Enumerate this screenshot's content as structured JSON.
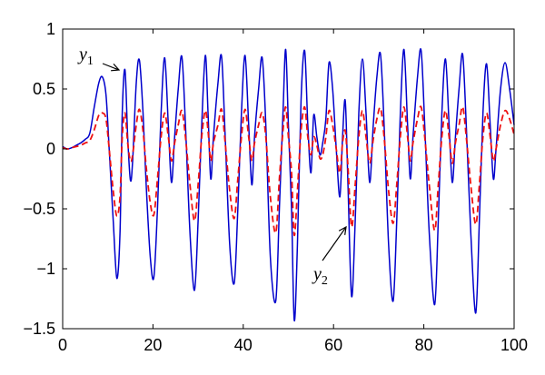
{
  "chart_data": {
    "type": "line",
    "title": "",
    "xlabel": "",
    "ylabel": "",
    "xlim": [
      0,
      100
    ],
    "ylim": [
      -1.5,
      1
    ],
    "x_ticks": [
      0,
      20,
      40,
      60,
      80,
      100
    ],
    "y_ticks": [
      1,
      0.5,
      0,
      -0.5,
      -1,
      -1.5
    ],
    "x_tick_labels": [
      "0",
      "20",
      "40",
      "60",
      "80",
      "100"
    ],
    "y_tick_labels": [
      "1",
      "0.5",
      "0",
      "−0.5",
      "−1",
      "−1.5"
    ],
    "grid": false,
    "legend": "none",
    "series": [
      {
        "color": "#0000cc",
        "style": "solid",
        "points": [
          [
            0,
            0.02
          ],
          [
            1,
            0.0
          ],
          [
            2,
            0.01
          ],
          [
            3,
            0.03
          ],
          [
            4,
            0.05
          ],
          [
            5,
            0.08
          ],
          [
            6,
            0.13
          ],
          [
            7,
            0.35
          ],
          [
            8,
            0.55
          ],
          [
            8.8,
            0.6
          ],
          [
            9.6,
            0.45
          ],
          [
            10.3,
            0.0
          ],
          [
            11.2,
            -0.6
          ],
          [
            12,
            -1.08
          ],
          [
            12.7,
            -0.7
          ],
          [
            13.2,
            0.3
          ],
          [
            13.8,
            0.66
          ],
          [
            14.4,
            0.1
          ],
          [
            15,
            -0.26
          ],
          [
            15.5,
            -0.1
          ],
          [
            16.3,
            0.55
          ],
          [
            17,
            0.74
          ],
          [
            17.8,
            0.3
          ],
          [
            18.5,
            -0.3
          ],
          [
            19.4,
            -0.9
          ],
          [
            20.2,
            -1.07
          ],
          [
            21,
            -0.5
          ],
          [
            21.8,
            0.3
          ],
          [
            22.6,
            0.76
          ],
          [
            23.4,
            0.2
          ],
          [
            24.1,
            -0.28
          ],
          [
            24.8,
            0.1
          ],
          [
            25.6,
            0.5
          ],
          [
            26.4,
            0.77
          ],
          [
            27.2,
            0.2
          ],
          [
            28.2,
            -0.7
          ],
          [
            29.2,
            -1.18
          ],
          [
            30,
            -0.6
          ],
          [
            30.8,
            0.2
          ],
          [
            31.6,
            0.78
          ],
          [
            32.2,
            0.3
          ],
          [
            32.8,
            -0.25
          ],
          [
            33.4,
            0.1
          ],
          [
            34.4,
            0.55
          ],
          [
            35.2,
            0.77
          ],
          [
            36,
            0.1
          ],
          [
            37,
            -0.8
          ],
          [
            38,
            -1.12
          ],
          [
            38.8,
            -0.5
          ],
          [
            39.6,
            0.3
          ],
          [
            40.4,
            0.78
          ],
          [
            41.2,
            0.2
          ],
          [
            41.9,
            -0.3
          ],
          [
            42.5,
            0.1
          ],
          [
            43.4,
            0.5
          ],
          [
            44.2,
            0.76
          ],
          [
            45,
            0.2
          ],
          [
            46,
            -0.9
          ],
          [
            47.2,
            -1.27
          ],
          [
            48,
            -0.5
          ],
          [
            48.8,
            0.3
          ],
          [
            49.4,
            0.83
          ],
          [
            50,
            0.2
          ],
          [
            50.7,
            -0.5
          ],
          [
            51.3,
            -1.43
          ],
          [
            52,
            -0.8
          ],
          [
            52.8,
            0.4
          ],
          [
            53.6,
            0.82
          ],
          [
            54.3,
            0.2
          ],
          [
            55,
            -0.2
          ],
          [
            55.6,
            0.28
          ],
          [
            56.3,
            0.1
          ],
          [
            57,
            -0.05
          ],
          [
            57.6,
            0.05
          ],
          [
            58.3,
            0.25
          ],
          [
            59,
            0.72
          ],
          [
            59.8,
            0.5
          ],
          [
            60.6,
            0.0
          ],
          [
            61.4,
            -0.4
          ],
          [
            62,
            0.1
          ],
          [
            62.6,
            0.4
          ],
          [
            63.2,
            -0.3
          ],
          [
            64,
            -1.23
          ],
          [
            64.8,
            -0.6
          ],
          [
            65.6,
            0.3
          ],
          [
            66.4,
            0.75
          ],
          [
            67.2,
            0.3
          ],
          [
            68,
            -0.28
          ],
          [
            68.8,
            0.2
          ],
          [
            69.6,
            0.6
          ],
          [
            70.4,
            0.79
          ],
          [
            71.2,
            0.2
          ],
          [
            72.2,
            -0.8
          ],
          [
            73.2,
            -1.27
          ],
          [
            74,
            -0.6
          ],
          [
            74.8,
            0.3
          ],
          [
            75.6,
            0.83
          ],
          [
            76.4,
            0.2
          ],
          [
            77,
            -0.25
          ],
          [
            77.6,
            0.1
          ],
          [
            78.6,
            0.6
          ],
          [
            79.4,
            0.82
          ],
          [
            80.2,
            0.2
          ],
          [
            81.2,
            -0.7
          ],
          [
            82.4,
            -1.3
          ],
          [
            83.2,
            -0.6
          ],
          [
            84,
            0.3
          ],
          [
            84.8,
            0.75
          ],
          [
            85.6,
            0.2
          ],
          [
            86.3,
            -0.28
          ],
          [
            87,
            0.1
          ],
          [
            87.8,
            0.5
          ],
          [
            88.6,
            0.79
          ],
          [
            89.4,
            0.2
          ],
          [
            90.4,
            -0.7
          ],
          [
            91.5,
            -1.37
          ],
          [
            92.3,
            -0.6
          ],
          [
            93.1,
            0.3
          ],
          [
            93.9,
            0.71
          ],
          [
            94.7,
            0.2
          ],
          [
            95.4,
            -0.25
          ],
          [
            96,
            0.0
          ],
          [
            97,
            0.5
          ],
          [
            98,
            0.72
          ],
          [
            99,
            0.5
          ],
          [
            100,
            0.2
          ]
        ]
      },
      {
        "color": "#ee1111",
        "style": "dashed",
        "points": [
          [
            0,
            0.01
          ],
          [
            1,
            0.0
          ],
          [
            2,
            0.01
          ],
          [
            3,
            0.02
          ],
          [
            4,
            0.03
          ],
          [
            5,
            0.05
          ],
          [
            6,
            0.07
          ],
          [
            7,
            0.16
          ],
          [
            8,
            0.28
          ],
          [
            8.8,
            0.3
          ],
          [
            9.6,
            0.25
          ],
          [
            10.3,
            0.0
          ],
          [
            11.2,
            -0.35
          ],
          [
            12,
            -0.56
          ],
          [
            12.7,
            -0.4
          ],
          [
            13.2,
            0.1
          ],
          [
            13.8,
            0.3
          ],
          [
            14.4,
            0.05
          ],
          [
            15,
            -0.1
          ],
          [
            15.5,
            -0.05
          ],
          [
            16.3,
            0.2
          ],
          [
            17,
            0.33
          ],
          [
            17.8,
            0.15
          ],
          [
            18.5,
            -0.15
          ],
          [
            19.4,
            -0.45
          ],
          [
            20.2,
            -0.55
          ],
          [
            21,
            -0.25
          ],
          [
            21.8,
            0.1
          ],
          [
            22.6,
            0.3
          ],
          [
            23.4,
            0.1
          ],
          [
            24.1,
            -0.1
          ],
          [
            24.8,
            0.05
          ],
          [
            25.6,
            0.2
          ],
          [
            26.4,
            0.32
          ],
          [
            27.2,
            0.1
          ],
          [
            28.2,
            -0.3
          ],
          [
            29.2,
            -0.6
          ],
          [
            30,
            -0.3
          ],
          [
            30.8,
            0.1
          ],
          [
            31.6,
            0.32
          ],
          [
            32.2,
            0.15
          ],
          [
            32.8,
            -0.1
          ],
          [
            33.4,
            0.05
          ],
          [
            34.4,
            0.2
          ],
          [
            35.2,
            0.33
          ],
          [
            36,
            0.05
          ],
          [
            37,
            -0.35
          ],
          [
            38,
            -0.58
          ],
          [
            38.8,
            -0.25
          ],
          [
            39.6,
            0.1
          ],
          [
            40.4,
            0.33
          ],
          [
            41.2,
            0.1
          ],
          [
            41.9,
            -0.1
          ],
          [
            42.5,
            0.05
          ],
          [
            43.4,
            0.2
          ],
          [
            44.2,
            0.3
          ],
          [
            45,
            0.1
          ],
          [
            46,
            -0.4
          ],
          [
            47.2,
            -0.7
          ],
          [
            48,
            -0.25
          ],
          [
            48.8,
            0.15
          ],
          [
            49.4,
            0.35
          ],
          [
            50,
            0.1
          ],
          [
            50.7,
            -0.2
          ],
          [
            51.3,
            -0.72
          ],
          [
            52,
            -0.35
          ],
          [
            52.8,
            0.15
          ],
          [
            53.6,
            0.35
          ],
          [
            54.3,
            0.1
          ],
          [
            55,
            -0.05
          ],
          [
            55.6,
            0.1
          ],
          [
            56.3,
            0.03
          ],
          [
            57,
            -0.08
          ],
          [
            57.6,
            -0.05
          ],
          [
            58.3,
            0.1
          ],
          [
            59,
            0.32
          ],
          [
            59.8,
            0.2
          ],
          [
            60.6,
            0.0
          ],
          [
            61.4,
            -0.2
          ],
          [
            62,
            0.05
          ],
          [
            62.6,
            0.15
          ],
          [
            63.2,
            -0.15
          ],
          [
            64,
            -0.65
          ],
          [
            64.8,
            -0.3
          ],
          [
            65.6,
            0.1
          ],
          [
            66.4,
            0.32
          ],
          [
            67.2,
            0.1
          ],
          [
            68,
            -0.12
          ],
          [
            68.8,
            0.08
          ],
          [
            69.6,
            0.25
          ],
          [
            70.4,
            0.34
          ],
          [
            71.2,
            0.1
          ],
          [
            72.2,
            -0.35
          ],
          [
            73.2,
            -0.62
          ],
          [
            74,
            -0.3
          ],
          [
            74.8,
            0.1
          ],
          [
            75.6,
            0.35
          ],
          [
            76.4,
            0.1
          ],
          [
            77,
            -0.1
          ],
          [
            77.6,
            0.05
          ],
          [
            78.6,
            0.25
          ],
          [
            79.4,
            0.35
          ],
          [
            80.2,
            0.1
          ],
          [
            81.2,
            -0.3
          ],
          [
            82.4,
            -0.68
          ],
          [
            83.2,
            -0.3
          ],
          [
            84,
            0.1
          ],
          [
            84.8,
            0.32
          ],
          [
            85.6,
            0.1
          ],
          [
            86.3,
            -0.12
          ],
          [
            87,
            0.05
          ],
          [
            87.8,
            0.2
          ],
          [
            88.6,
            0.35
          ],
          [
            89.4,
            0.1
          ],
          [
            90.4,
            -0.3
          ],
          [
            91.5,
            -0.63
          ],
          [
            92.3,
            -0.3
          ],
          [
            93.1,
            0.1
          ],
          [
            93.9,
            0.3
          ],
          [
            94.7,
            0.1
          ],
          [
            95.4,
            -0.1
          ],
          [
            96,
            0.0
          ],
          [
            97,
            0.2
          ],
          [
            98,
            0.32
          ],
          [
            99,
            0.25
          ],
          [
            100,
            0.12
          ]
        ]
      }
    ],
    "annotations": [
      {
        "label": "y",
        "subscript": "1",
        "arrow_to": [
          13.8,
          0.66
        ]
      },
      {
        "label": "y",
        "subscript": "2",
        "arrow_to": [
          64,
          -0.65
        ]
      }
    ]
  }
}
